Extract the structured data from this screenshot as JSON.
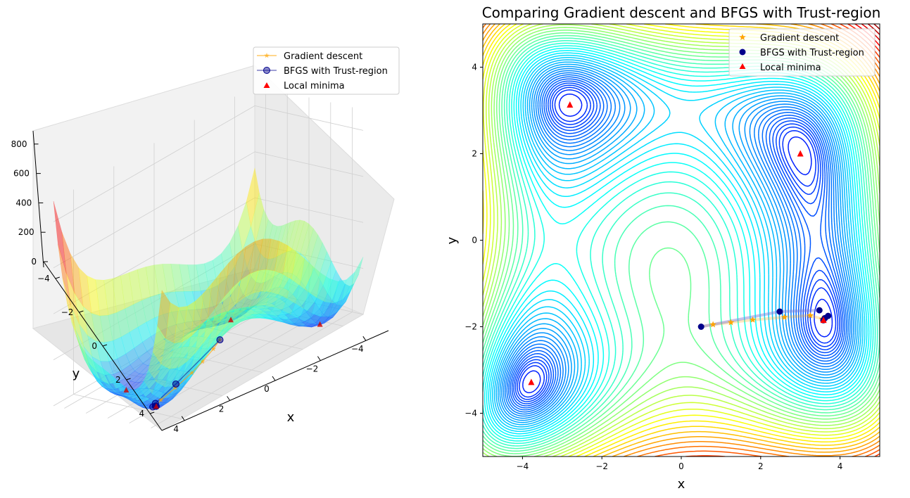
{
  "chart_data": [
    {
      "type": "surface3d",
      "title": "",
      "xlabel": "x",
      "ylabel": "y",
      "zlabel": "",
      "xticks": [
        4,
        2,
        0,
        -2,
        -4
      ],
      "xtick_labels": [
        "4",
        "2",
        "0",
        "−2",
        "−4"
      ],
      "yticks": [
        -4,
        -2,
        0,
        2,
        4
      ],
      "ytick_labels": [
        "−4",
        "−2",
        "0",
        "2",
        "4"
      ],
      "zticks": [
        0,
        200,
        400,
        600,
        800
      ],
      "ztick_labels": [
        "0",
        "200",
        "400",
        "600",
        "800"
      ],
      "xlim": [
        -5,
        5
      ],
      "ylim": [
        -5,
        5
      ],
      "zlim": [
        0,
        890
      ],
      "legend": {
        "placement": "top-right",
        "entries": [
          {
            "label": "Gradient descent",
            "color": "#ffa500",
            "marker": "star-line"
          },
          {
            "label": "BFGS with Trust-region",
            "color": "#00008b",
            "marker": "circle-line"
          },
          {
            "label": "Local minima",
            "color": "#ff0000",
            "marker": "triangle"
          }
        ]
      },
      "series": [
        {
          "name": "Gradient descent",
          "color": "#ffa500",
          "points": [
            [
              0.5,
              -2,
              135
            ],
            [
              0.8,
              -1.95,
              110
            ],
            [
              1.3,
              -1.88,
              80
            ],
            [
              1.8,
              -1.82,
              55
            ],
            [
              2.6,
              -1.78,
              30
            ],
            [
              3.3,
              -1.75,
              12
            ],
            [
              3.584,
              -1.848,
              0
            ]
          ]
        },
        {
          "name": "BFGS with Trust-region",
          "color": "#00008b",
          "points": [
            [
              0.5,
              -2,
              135
            ],
            [
              2.5,
              -1.65,
              40
            ],
            [
              3.5,
              -1.62,
              6
            ],
            [
              3.6,
              -1.8,
              1
            ],
            [
              3.7,
              -1.75,
              2
            ],
            [
              3.584,
              -1.848,
              0
            ]
          ]
        },
        {
          "name": "Local minima",
          "color": "#ff0000",
          "points": [
            [
              3,
              2,
              0
            ],
            [
              -2.805,
              3.131,
              0
            ],
            [
              -3.779,
              -3.283,
              0
            ],
            [
              3.584,
              -1.848,
              0
            ]
          ]
        }
      ]
    },
    {
      "type": "contour",
      "title": "Comparing Gradient descent and BFGS with Trust-region",
      "xlabel": "x",
      "ylabel": "y",
      "xlim": [
        -5,
        5
      ],
      "ylim": [
        -5,
        5
      ],
      "xticks": [
        -4,
        -2,
        0,
        2,
        4
      ],
      "xtick_labels": [
        "−4",
        "−2",
        "0",
        "2",
        "4"
      ],
      "yticks": [
        -4,
        -2,
        0,
        2,
        4
      ],
      "ytick_labels": [
        "−4",
        "−2",
        "0",
        "2",
        "4"
      ],
      "colormap": "jet",
      "legend": {
        "placement": "top-right",
        "entries": [
          {
            "label": "Gradient descent",
            "color": "#ffa500",
            "marker": "star"
          },
          {
            "label": "BFGS with Trust-region",
            "color": "#00008b",
            "marker": "circle"
          },
          {
            "label": "Local minima",
            "color": "#ff0000",
            "marker": "triangle"
          }
        ]
      },
      "series": [
        {
          "name": "Gradient descent",
          "color": "#ffa500",
          "x": [
            0.5,
            0.8,
            1.25,
            1.8,
            2.6,
            3.25,
            3.55,
            3.6
          ],
          "y": [
            -2.0,
            -1.95,
            -1.9,
            -1.84,
            -1.78,
            -1.74,
            -1.82,
            -1.85
          ]
        },
        {
          "name": "BFGS with Trust-region",
          "color": "#00008b",
          "x": [
            0.5,
            2.48,
            3.48,
            3.62,
            3.7,
            3.58
          ],
          "y": [
            -2.0,
            -1.65,
            -1.62,
            -1.8,
            -1.75,
            -1.85
          ]
        },
        {
          "name": "Local minima",
          "color": "#ff0000",
          "x": [
            3.0,
            -2.805,
            -3.779,
            3.584
          ],
          "y": [
            2.0,
            3.131,
            -3.283,
            -1.848
          ]
        }
      ]
    }
  ]
}
